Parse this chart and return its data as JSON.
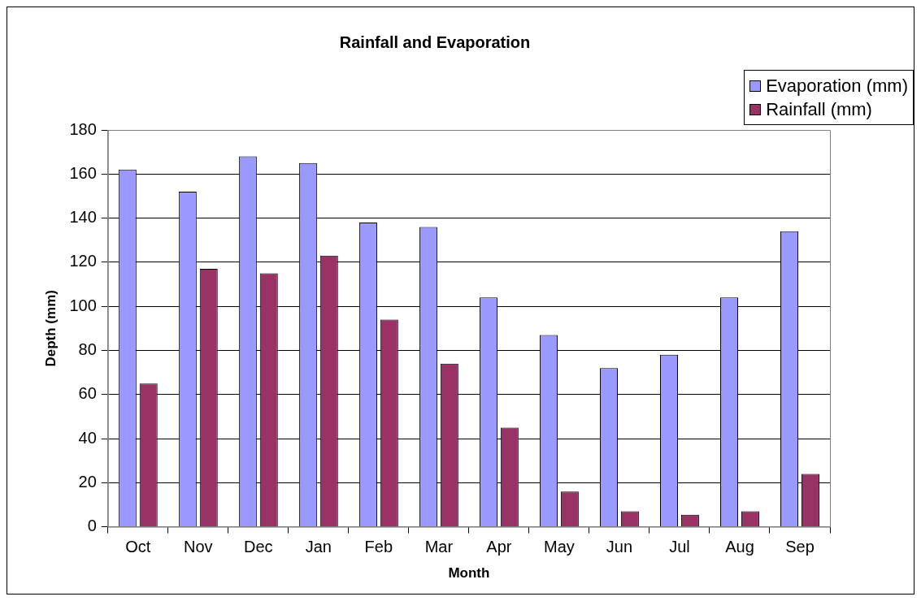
{
  "chart_data": {
    "type": "bar",
    "title": "Rainfall and Evaporation",
    "xlabel": "Month",
    "ylabel": "Depth (mm)",
    "categories": [
      "Oct",
      "Nov",
      "Dec",
      "Jan",
      "Feb",
      "Mar",
      "Apr",
      "May",
      "Jun",
      "Jul",
      "Aug",
      "Sep"
    ],
    "series": [
      {
        "name": "Evaporation (mm)",
        "color": "#9999ff",
        "values": [
          162,
          152,
          168,
          165,
          138,
          136,
          104,
          87,
          72,
          78,
          104,
          134
        ]
      },
      {
        "name": "Rainfall (mm)",
        "color": "#993366",
        "values": [
          65,
          117,
          115,
          123,
          94,
          74,
          45,
          16,
          7,
          5.5,
          7,
          24
        ]
      }
    ],
    "ylim": [
      0,
      180
    ],
    "yticks": [
      0,
      20,
      40,
      60,
      80,
      100,
      120,
      140,
      160,
      180
    ],
    "grid": "y",
    "legend": "top right"
  }
}
